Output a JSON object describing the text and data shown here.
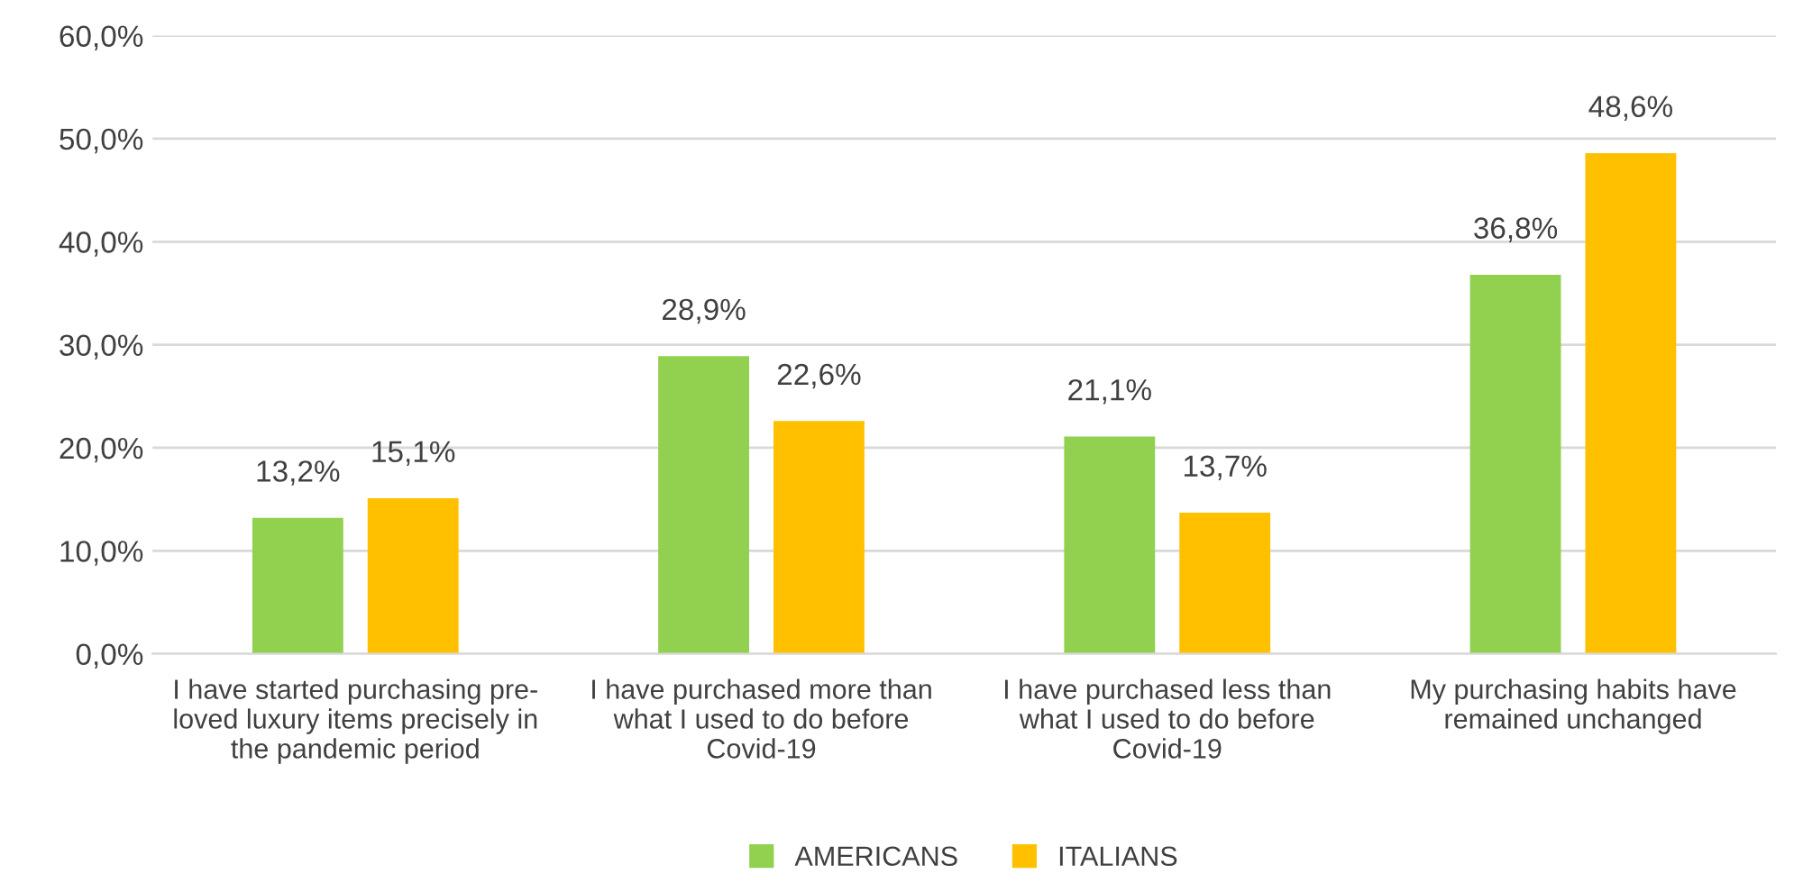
{
  "chart_data": {
    "type": "bar",
    "categories": [
      "I have started purchasing pre-\nloved luxury items precisely in\nthe pandemic period",
      "I have purchased more than\nwhat I used to do before\nCovid-19",
      "I have purchased less than\nwhat I used to do before\nCovid-19",
      "My purchasing habits have\nremained unchanged"
    ],
    "series": [
      {
        "name": "AMERICANS",
        "color": "#92d050",
        "values": [
          13.2,
          28.9,
          21.1,
          36.8
        ],
        "value_labels": [
          "13,2%",
          "28,9%",
          "21,1%",
          "36,8%"
        ]
      },
      {
        "name": "ITALIANS",
        "color": "#ffc000",
        "values": [
          15.1,
          22.6,
          13.7,
          48.6
        ],
        "value_labels": [
          "15,1%",
          "22,6%",
          "13,7%",
          "48,6%"
        ]
      }
    ],
    "ylim": [
      0,
      60
    ],
    "yticks": [
      {
        "value": 0,
        "label": "0,0%"
      },
      {
        "value": 10,
        "label": "10,0%"
      },
      {
        "value": 20,
        "label": "20,0%"
      },
      {
        "value": 30,
        "label": "30,0%"
      },
      {
        "value": 40,
        "label": "40,0%"
      },
      {
        "value": 50,
        "label": "50,0%"
      },
      {
        "value": 60,
        "label": "60,0%"
      }
    ],
    "grid": "y",
    "legend": "bottom"
  }
}
